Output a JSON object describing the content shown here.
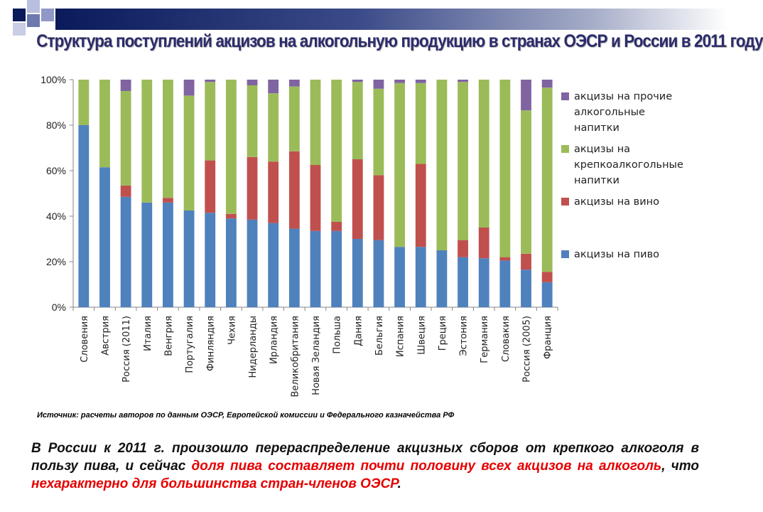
{
  "title": "Структура поступлений акцизов на алкогольную продукцию в странах ОЭСР и России в 2011 году",
  "chart_data": {
    "type": "bar",
    "stacked": true,
    "ylim": [
      0,
      100
    ],
    "yticks": [
      "0%",
      "20%",
      "40%",
      "60%",
      "80%",
      "100%"
    ],
    "grid": false,
    "legend_position": "right",
    "categories": [
      "Словения",
      "Австрия",
      "Россия (2011)",
      "Италия",
      "Венгрия",
      "Португалия",
      "Финляндия",
      "Чехия",
      "Нидерланды",
      "Ирландия",
      "Великобритания",
      "Новая Зеландия",
      "Польша",
      "Дания",
      "Бельгия",
      "Испания",
      "Швеция",
      "Греция",
      "Эстония",
      "Германия",
      "Словакия",
      "Россия (2005)",
      "Франция"
    ],
    "series": [
      {
        "name": "акцизы на пиво",
        "color": "#4f81bd",
        "values": [
          80,
          61.5,
          48.5,
          46,
          46,
          42.5,
          41.5,
          39,
          38.5,
          37,
          34.5,
          33.5,
          33.5,
          30,
          29.5,
          26.5,
          26.5,
          25,
          22,
          21.5,
          20.5,
          16.5,
          11
        ]
      },
      {
        "name": "акцизы на вино",
        "color": "#c0504d",
        "values": [
          0,
          0,
          5,
          0,
          2,
          0,
          23,
          2,
          27.5,
          27,
          34,
          29,
          4,
          35,
          28.5,
          0,
          36.5,
          0,
          7.5,
          13.5,
          1.5,
          7,
          4.5
        ]
      },
      {
        "name": "акцизы на крепкоалкогольные напитки",
        "color": "#9bbb59",
        "values": [
          20,
          38.5,
          41.5,
          54,
          52,
          50.5,
          34.5,
          59,
          31.5,
          30,
          28.5,
          37.5,
          62.5,
          34,
          38,
          72,
          35.5,
          75,
          69.5,
          65,
          78,
          63,
          81
        ]
      },
      {
        "name": "акцизы на прочие алкогольные напитки",
        "color": "#8064a2",
        "values": [
          0,
          0,
          5,
          0,
          0,
          7,
          1,
          0,
          2.5,
          6,
          3,
          0,
          0,
          1,
          4,
          1.5,
          1.5,
          0,
          1,
          0,
          0,
          13.5,
          3.5
        ]
      }
    ],
    "legend": [
      {
        "series": 3,
        "lines": [
          "акцизы на прочие",
          "алкогольные",
          "напитки"
        ]
      },
      {
        "series": 2,
        "lines": [
          "акцизы на",
          "крепкоалкогольные",
          "напитки"
        ]
      },
      {
        "series": 1,
        "lines": [
          "акцизы на вино"
        ]
      },
      {
        "series": 0,
        "lines": [
          "акцизы на пиво"
        ]
      }
    ]
  },
  "source": "Источник: расчеты авторов по данным ОЭСР, Европейской комиссии и Федерального казначейства РФ",
  "paragraph": {
    "part1": "В России к 2011 г. произошло перераспределение акцизных сборов от крепкого алкоголя в пользу пива, и сейчас ",
    "part2": "доля пива составляет почти половину всех акцизов на алкоголь",
    "part3": ", что ",
    "part4": "нехарактерно для большинства стран-членов ОЭСР",
    "part5": "."
  }
}
